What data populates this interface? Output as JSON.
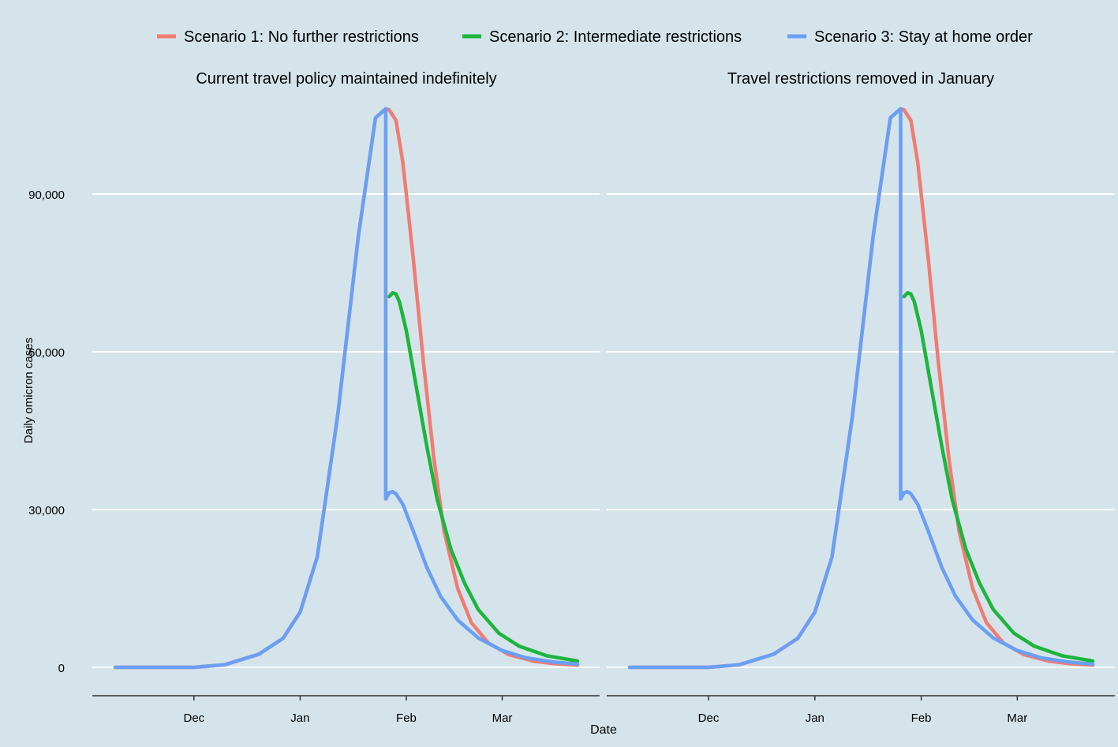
{
  "chart_data": {
    "type": "line",
    "xlabel": "Date",
    "ylabel": "Daily omicron cases",
    "ylim": [
      0,
      105000
    ],
    "yticks": [
      0,
      30000,
      60000,
      90000
    ],
    "ytick_labels": [
      "0",
      "30,000",
      "60,000",
      "90,000"
    ],
    "xticks": [
      "Dec",
      "Jan",
      "Feb",
      "Mar"
    ],
    "xtick_dates": [
      "2021-12-01",
      "2022-01-01",
      "2022-02-01",
      "2022-03-01"
    ],
    "xlim": [
      "2021-11-08",
      "2022-03-23"
    ],
    "grid": "horizontal",
    "legend_position": "top",
    "colors": {
      "scenario1": "#f07c73",
      "scenario2": "#1db53b",
      "scenario3": "#6a9ff5"
    },
    "legend": [
      {
        "key": "scenario1",
        "label": "Scenario 1: No further restrictions"
      },
      {
        "key": "scenario2",
        "label": "Scenario 2: Intermediate restrictions"
      },
      {
        "key": "scenario3",
        "label": "Scenario 3: Stay at home order"
      }
    ],
    "panels": [
      {
        "title": "Current travel policy maintained indefinitely",
        "series": [
          {
            "key": "scenario1",
            "x": [
              "2021-11-08",
              "2021-12-01",
              "2021-12-10",
              "2021-12-20",
              "2021-12-27",
              "2022-01-01",
              "2022-01-06",
              "2022-01-12",
              "2022-01-18",
              "2022-01-23",
              "2022-01-26",
              "2022-01-27",
              "2022-01-29",
              "2022-01-31",
              "2022-02-03",
              "2022-02-06",
              "2022-02-09",
              "2022-02-12",
              "2022-02-16",
              "2022-02-20",
              "2022-02-25",
              "2022-03-03",
              "2022-03-10",
              "2022-03-16",
              "2022-03-23"
            ],
            "y": [
              0,
              0,
              500,
              2500,
              5500,
              10500,
              21000,
              48000,
              82000,
              104500,
              106200,
              106000,
              104000,
              96000,
              78000,
              58000,
              40000,
              26000,
              15000,
              8500,
              4600,
              2400,
              1200,
              700,
              400
            ]
          },
          {
            "key": "scenario2",
            "x": [
              "2022-01-27",
              "2022-01-28",
              "2022-01-29",
              "2022-01-30",
              "2022-02-01",
              "2022-02-04",
              "2022-02-07",
              "2022-02-10",
              "2022-02-14",
              "2022-02-18",
              "2022-02-22",
              "2022-02-28",
              "2022-03-06",
              "2022-03-14",
              "2022-03-23"
            ],
            "y": [
              70500,
              71200,
              71000,
              69500,
              64000,
              53000,
              42000,
              32000,
              22500,
              16000,
              11000,
              6500,
              4000,
              2200,
              1200
            ]
          },
          {
            "key": "scenario3",
            "x": [
              "2021-11-08",
              "2021-12-01",
              "2021-12-10",
              "2021-12-20",
              "2021-12-27",
              "2022-01-01",
              "2022-01-06",
              "2022-01-12",
              "2022-01-18",
              "2022-01-23",
              "2022-01-26",
              "2022-01-26",
              "2022-01-27",
              "2022-01-28",
              "2022-01-29",
              "2022-01-31",
              "2022-02-03",
              "2022-02-07",
              "2022-02-11",
              "2022-02-16",
              "2022-02-22",
              "2022-03-01",
              "2022-03-08",
              "2022-03-16",
              "2022-03-23"
            ],
            "y": [
              0,
              0,
              500,
              2500,
              5500,
              10500,
              21000,
              48000,
              82000,
              104500,
              106200,
              32000,
              33200,
              33400,
              33000,
              31000,
              26000,
              19000,
              13500,
              9000,
              5600,
              3200,
              1800,
              1000,
              600
            ]
          }
        ]
      },
      {
        "title": "Travel restrictions removed in January",
        "series": [
          {
            "key": "scenario1",
            "x": [
              "2021-11-08",
              "2021-12-01",
              "2021-12-10",
              "2021-12-20",
              "2021-12-27",
              "2022-01-01",
              "2022-01-06",
              "2022-01-12",
              "2022-01-18",
              "2022-01-23",
              "2022-01-26",
              "2022-01-27",
              "2022-01-29",
              "2022-01-31",
              "2022-02-03",
              "2022-02-06",
              "2022-02-09",
              "2022-02-12",
              "2022-02-16",
              "2022-02-20",
              "2022-02-25",
              "2022-03-03",
              "2022-03-10",
              "2022-03-16",
              "2022-03-23"
            ],
            "y": [
              0,
              0,
              500,
              2500,
              5500,
              10500,
              21000,
              48000,
              82000,
              104500,
              106200,
              106000,
              104000,
              96000,
              78000,
              58000,
              40000,
              26000,
              15000,
              8500,
              4600,
              2400,
              1200,
              700,
              400
            ]
          },
          {
            "key": "scenario2",
            "x": [
              "2022-01-27",
              "2022-01-28",
              "2022-01-29",
              "2022-01-30",
              "2022-02-01",
              "2022-02-04",
              "2022-02-07",
              "2022-02-10",
              "2022-02-14",
              "2022-02-18",
              "2022-02-22",
              "2022-02-28",
              "2022-03-06",
              "2022-03-14",
              "2022-03-23"
            ],
            "y": [
              70500,
              71200,
              71000,
              69500,
              64000,
              53000,
              42000,
              32000,
              22500,
              16000,
              11000,
              6500,
              4000,
              2200,
              1200
            ]
          },
          {
            "key": "scenario3",
            "x": [
              "2021-11-08",
              "2021-12-01",
              "2021-12-10",
              "2021-12-20",
              "2021-12-27",
              "2022-01-01",
              "2022-01-06",
              "2022-01-12",
              "2022-01-18",
              "2022-01-23",
              "2022-01-26",
              "2022-01-26",
              "2022-01-27",
              "2022-01-28",
              "2022-01-29",
              "2022-01-31",
              "2022-02-03",
              "2022-02-07",
              "2022-02-11",
              "2022-02-16",
              "2022-02-22",
              "2022-03-01",
              "2022-03-08",
              "2022-03-16",
              "2022-03-23"
            ],
            "y": [
              0,
              0,
              500,
              2500,
              5500,
              10500,
              21000,
              48000,
              82000,
              104500,
              106200,
              32000,
              33200,
              33400,
              33000,
              31000,
              26000,
              19000,
              13500,
              9000,
              5600,
              3200,
              1800,
              1000,
              600
            ]
          }
        ]
      }
    ]
  }
}
